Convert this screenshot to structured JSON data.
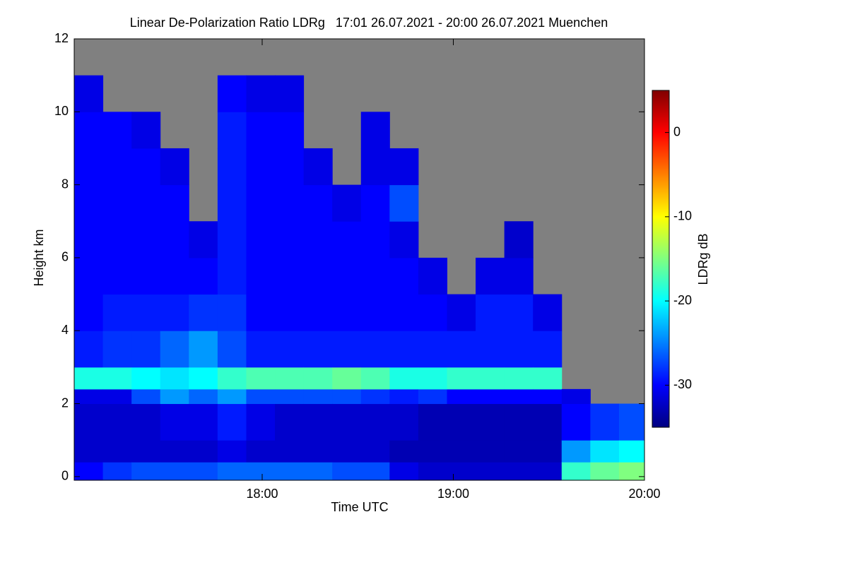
{
  "chart_data": {
    "type": "heatmap",
    "title": "Linear De-Polarization Ratio LDRg   17:01 26.07.2021 - 20:00 26.07.2021 Muenchen",
    "xlabel": "Time UTC",
    "ylabel": "Height km",
    "colorbar_label": "LDRg dB",
    "colormap": "jet",
    "missing_color": "#808080",
    "x": [
      1021,
      1030,
      1039,
      1048,
      1057,
      1066,
      1075,
      1084,
      1093,
      1102,
      1111,
      1120,
      1129,
      1138,
      1147,
      1156,
      1165,
      1174,
      1183,
      1192
    ],
    "y": [
      0,
      0.4,
      1,
      2,
      2.4,
      3,
      4,
      5,
      6,
      7,
      8,
      9,
      10,
      11
    ],
    "values": [
      [
        -30,
        -32,
        -32,
        -31,
        -19,
        -29,
        -30,
        -30,
        -30,
        -30,
        -30,
        -30,
        -31,
        null
      ],
      [
        -28,
        -32,
        -32,
        -31,
        -19,
        -28,
        -29,
        -30,
        -30,
        -30,
        -30,
        -30,
        null,
        null
      ],
      [
        -27,
        -32,
        -32,
        -27,
        -20,
        -28,
        -29,
        -30,
        -30,
        -30,
        -30,
        -31,
        null,
        null
      ],
      [
        -27,
        -32,
        -31,
        -24,
        -21,
        -26,
        -29,
        -30,
        -30,
        -30,
        -31,
        null,
        null,
        null
      ],
      [
        -27,
        -32,
        -31,
        -26,
        -20,
        -24,
        -28,
        -30,
        -31,
        null,
        null,
        null,
        null,
        null
      ],
      [
        -26,
        -31,
        -29,
        -24,
        -18,
        -27,
        -28,
        -29,
        -29,
        -29,
        -29,
        -29,
        -30,
        null
      ],
      [
        -26,
        -32,
        -31,
        -27,
        -17,
        -29,
        -30,
        -30,
        -30,
        -30,
        -30,
        -30,
        -31,
        null
      ],
      [
        -26,
        -32,
        -32,
        -27,
        -17,
        -29,
        -30,
        -30,
        -30,
        -30,
        -30,
        -30,
        -31,
        null
      ],
      [
        -26,
        -32,
        -32,
        -27,
        -17,
        -29,
        -30,
        -30,
        -30,
        -30,
        -31,
        null,
        null,
        null
      ],
      [
        -27,
        -32,
        -32,
        -27,
        -16,
        -29,
        -30,
        -30,
        -30,
        -31,
        null,
        null,
        null,
        null
      ],
      [
        -27,
        -32,
        -32,
        -28,
        -17,
        -29,
        -30,
        -30,
        -30,
        -30,
        -31,
        -31,
        null,
        null
      ],
      [
        -31,
        -33,
        -32,
        -29,
        -19,
        -29,
        -30,
        -30,
        -31,
        -27,
        -31,
        null,
        null,
        null
      ],
      [
        -32,
        -33,
        -33,
        -28,
        -19,
        -29,
        -30,
        -31,
        null,
        null,
        null,
        null,
        null,
        null
      ],
      [
        -32,
        -33,
        -33,
        -30,
        -18,
        -29,
        -31,
        null,
        null,
        null,
        null,
        null,
        null,
        null
      ],
      [
        -32,
        -33,
        -33,
        -30,
        -18,
        -29,
        -29,
        -31,
        null,
        null,
        null,
        null,
        null,
        null
      ],
      [
        -32,
        -33,
        -33,
        -30,
        -18,
        -29,
        -29,
        -31,
        -32,
        null,
        null,
        null,
        null,
        null
      ],
      [
        -32,
        -33,
        -33,
        -30,
        -18,
        -29,
        -31,
        null,
        null,
        null,
        null,
        null,
        null,
        null
      ],
      [
        -18,
        -24,
        -30,
        -31,
        null,
        null,
        null,
        null,
        null,
        null,
        null,
        null,
        null,
        null
      ],
      [
        -16,
        -21,
        -28,
        null,
        null,
        null,
        null,
        null,
        null,
        null,
        null,
        null,
        null,
        null
      ],
      [
        -15,
        -20,
        -27,
        null,
        null,
        null,
        null,
        null,
        null,
        null,
        null,
        null,
        null,
        null
      ]
    ],
    "xlim": [
      1021,
      1200
    ],
    "xticks": [
      {
        "value": 1080,
        "label": "18:00"
      },
      {
        "value": 1140,
        "label": "19:00"
      },
      {
        "value": 1200,
        "label": "20:00"
      }
    ],
    "ylim": [
      -0.1,
      12
    ],
    "yticks": [
      0,
      2,
      4,
      6,
      8,
      10,
      12
    ],
    "clim": [
      -35,
      5
    ],
    "cticks": [
      0,
      -10,
      -20,
      -30
    ]
  }
}
